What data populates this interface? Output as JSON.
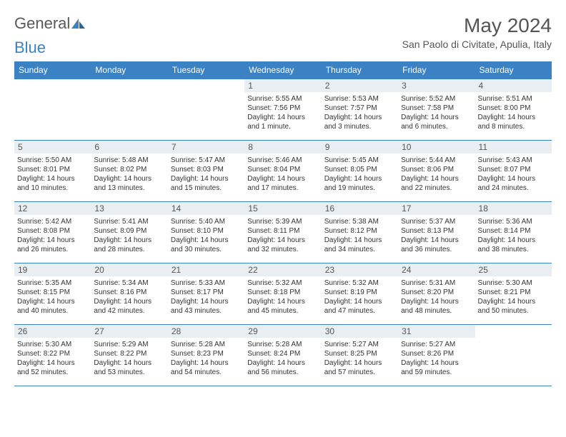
{
  "logo": {
    "part1": "General",
    "part2": "Blue"
  },
  "title": "May 2024",
  "location": "San Paolo di Civitate, Apulia, Italy",
  "day_headers": [
    "Sunday",
    "Monday",
    "Tuesday",
    "Wednesday",
    "Thursday",
    "Friday",
    "Saturday"
  ],
  "colors": {
    "header_bg": "#3b82c4",
    "header_text": "#ffffff",
    "daynum_bg": "#e9eef2",
    "border": "#3b82c4",
    "body_text": "#333333",
    "title_text": "#555555"
  },
  "fonts": {
    "title_size_pt": 21,
    "location_size_pt": 10.5,
    "header_size_pt": 9,
    "daynum_size_pt": 9,
    "body_size_pt": 7.5
  },
  "weeks": [
    [
      {
        "n": "",
        "lines": []
      },
      {
        "n": "",
        "lines": []
      },
      {
        "n": "",
        "lines": []
      },
      {
        "n": "1",
        "lines": [
          "Sunrise: 5:55 AM",
          "Sunset: 7:56 PM",
          "Daylight: 14 hours and 1 minute."
        ]
      },
      {
        "n": "2",
        "lines": [
          "Sunrise: 5:53 AM",
          "Sunset: 7:57 PM",
          "Daylight: 14 hours and 3 minutes."
        ]
      },
      {
        "n": "3",
        "lines": [
          "Sunrise: 5:52 AM",
          "Sunset: 7:58 PM",
          "Daylight: 14 hours and 6 minutes."
        ]
      },
      {
        "n": "4",
        "lines": [
          "Sunrise: 5:51 AM",
          "Sunset: 8:00 PM",
          "Daylight: 14 hours and 8 minutes."
        ]
      }
    ],
    [
      {
        "n": "5",
        "lines": [
          "Sunrise: 5:50 AM",
          "Sunset: 8:01 PM",
          "Daylight: 14 hours and 10 minutes."
        ]
      },
      {
        "n": "6",
        "lines": [
          "Sunrise: 5:48 AM",
          "Sunset: 8:02 PM",
          "Daylight: 14 hours and 13 minutes."
        ]
      },
      {
        "n": "7",
        "lines": [
          "Sunrise: 5:47 AM",
          "Sunset: 8:03 PM",
          "Daylight: 14 hours and 15 minutes."
        ]
      },
      {
        "n": "8",
        "lines": [
          "Sunrise: 5:46 AM",
          "Sunset: 8:04 PM",
          "Daylight: 14 hours and 17 minutes."
        ]
      },
      {
        "n": "9",
        "lines": [
          "Sunrise: 5:45 AM",
          "Sunset: 8:05 PM",
          "Daylight: 14 hours and 19 minutes."
        ]
      },
      {
        "n": "10",
        "lines": [
          "Sunrise: 5:44 AM",
          "Sunset: 8:06 PM",
          "Daylight: 14 hours and 22 minutes."
        ]
      },
      {
        "n": "11",
        "lines": [
          "Sunrise: 5:43 AM",
          "Sunset: 8:07 PM",
          "Daylight: 14 hours and 24 minutes."
        ]
      }
    ],
    [
      {
        "n": "12",
        "lines": [
          "Sunrise: 5:42 AM",
          "Sunset: 8:08 PM",
          "Daylight: 14 hours and 26 minutes."
        ]
      },
      {
        "n": "13",
        "lines": [
          "Sunrise: 5:41 AM",
          "Sunset: 8:09 PM",
          "Daylight: 14 hours and 28 minutes."
        ]
      },
      {
        "n": "14",
        "lines": [
          "Sunrise: 5:40 AM",
          "Sunset: 8:10 PM",
          "Daylight: 14 hours and 30 minutes."
        ]
      },
      {
        "n": "15",
        "lines": [
          "Sunrise: 5:39 AM",
          "Sunset: 8:11 PM",
          "Daylight: 14 hours and 32 minutes."
        ]
      },
      {
        "n": "16",
        "lines": [
          "Sunrise: 5:38 AM",
          "Sunset: 8:12 PM",
          "Daylight: 14 hours and 34 minutes."
        ]
      },
      {
        "n": "17",
        "lines": [
          "Sunrise: 5:37 AM",
          "Sunset: 8:13 PM",
          "Daylight: 14 hours and 36 minutes."
        ]
      },
      {
        "n": "18",
        "lines": [
          "Sunrise: 5:36 AM",
          "Sunset: 8:14 PM",
          "Daylight: 14 hours and 38 minutes."
        ]
      }
    ],
    [
      {
        "n": "19",
        "lines": [
          "Sunrise: 5:35 AM",
          "Sunset: 8:15 PM",
          "Daylight: 14 hours and 40 minutes."
        ]
      },
      {
        "n": "20",
        "lines": [
          "Sunrise: 5:34 AM",
          "Sunset: 8:16 PM",
          "Daylight: 14 hours and 42 minutes."
        ]
      },
      {
        "n": "21",
        "lines": [
          "Sunrise: 5:33 AM",
          "Sunset: 8:17 PM",
          "Daylight: 14 hours and 43 minutes."
        ]
      },
      {
        "n": "22",
        "lines": [
          "Sunrise: 5:32 AM",
          "Sunset: 8:18 PM",
          "Daylight: 14 hours and 45 minutes."
        ]
      },
      {
        "n": "23",
        "lines": [
          "Sunrise: 5:32 AM",
          "Sunset: 8:19 PM",
          "Daylight: 14 hours and 47 minutes."
        ]
      },
      {
        "n": "24",
        "lines": [
          "Sunrise: 5:31 AM",
          "Sunset: 8:20 PM",
          "Daylight: 14 hours and 48 minutes."
        ]
      },
      {
        "n": "25",
        "lines": [
          "Sunrise: 5:30 AM",
          "Sunset: 8:21 PM",
          "Daylight: 14 hours and 50 minutes."
        ]
      }
    ],
    [
      {
        "n": "26",
        "lines": [
          "Sunrise: 5:30 AM",
          "Sunset: 8:22 PM",
          "Daylight: 14 hours and 52 minutes."
        ]
      },
      {
        "n": "27",
        "lines": [
          "Sunrise: 5:29 AM",
          "Sunset: 8:22 PM",
          "Daylight: 14 hours and 53 minutes."
        ]
      },
      {
        "n": "28",
        "lines": [
          "Sunrise: 5:28 AM",
          "Sunset: 8:23 PM",
          "Daylight: 14 hours and 54 minutes."
        ]
      },
      {
        "n": "29",
        "lines": [
          "Sunrise: 5:28 AM",
          "Sunset: 8:24 PM",
          "Daylight: 14 hours and 56 minutes."
        ]
      },
      {
        "n": "30",
        "lines": [
          "Sunrise: 5:27 AM",
          "Sunset: 8:25 PM",
          "Daylight: 14 hours and 57 minutes."
        ]
      },
      {
        "n": "31",
        "lines": [
          "Sunrise: 5:27 AM",
          "Sunset: 8:26 PM",
          "Daylight: 14 hours and 59 minutes."
        ]
      },
      {
        "n": "",
        "lines": []
      }
    ]
  ]
}
